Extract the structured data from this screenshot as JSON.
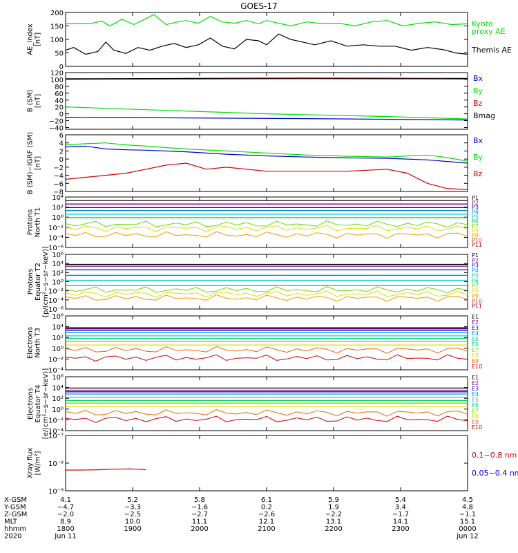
{
  "title": "GOES-17",
  "chart_data": [
    {
      "type": "line",
      "ylabel_lines": [
        "AE_index",
        "[nT]"
      ],
      "ylim": [
        0,
        200
      ],
      "yscale": "linear",
      "ticks": [
        0,
        50,
        100,
        150,
        200
      ],
      "tick_labels": [
        "0",
        "50",
        "100",
        "150",
        "200"
      ],
      "series": [
        {
          "name": "Kyoto proxy AE",
          "label_lines": [
            "Kyoto",
            "proxy AE"
          ],
          "color": "#00dd00",
          "t": [
            0,
            0.06,
            0.09,
            0.11,
            0.14,
            0.17,
            0.19,
            0.22,
            0.25,
            0.28,
            0.3,
            0.33,
            0.36,
            0.39,
            0.42,
            0.45,
            0.48,
            0.5,
            0.53,
            0.56,
            0.6,
            0.64,
            0.68,
            0.72,
            0.76,
            0.8,
            0.84,
            0.88,
            0.92,
            0.96,
            1.0
          ],
          "v": [
            158,
            158,
            168,
            150,
            175,
            155,
            170,
            192,
            155,
            165,
            170,
            160,
            185,
            165,
            160,
            170,
            158,
            170,
            160,
            150,
            165,
            158,
            160,
            150,
            165,
            170,
            150,
            160,
            165,
            155,
            158
          ]
        },
        {
          "name": "Themis AE",
          "label_lines": [
            "Themis AE"
          ],
          "color": "#000000",
          "t": [
            0,
            0.02,
            0.05,
            0.08,
            0.1,
            0.12,
            0.15,
            0.18,
            0.21,
            0.24,
            0.27,
            0.3,
            0.33,
            0.36,
            0.39,
            0.42,
            0.45,
            0.48,
            0.5,
            0.53,
            0.56,
            0.59,
            0.62,
            0.66,
            0.7,
            0.74,
            0.78,
            0.82,
            0.86,
            0.9,
            0.94,
            0.97,
            1.0
          ],
          "v": [
            60,
            70,
            45,
            55,
            90,
            60,
            48,
            70,
            60,
            75,
            85,
            70,
            80,
            105,
            75,
            65,
            100,
            95,
            80,
            120,
            100,
            90,
            80,
            95,
            75,
            80,
            75,
            75,
            60,
            70,
            62,
            50,
            45
          ]
        }
      ]
    },
    {
      "type": "line",
      "ylabel_lines": [
        "B (SM)",
        "[nT]"
      ],
      "ylim": [
        -45,
        120
      ],
      "yscale": "linear",
      "ticks": [
        -40,
        -20,
        0,
        20,
        40,
        60,
        80,
        100,
        120
      ],
      "tick_labels": [
        "−40",
        "−20",
        "0",
        "20",
        "40",
        "60",
        "80",
        "100",
        "120"
      ],
      "series": [
        {
          "name": "Bx",
          "color": "#0000cc",
          "t": [
            0,
            0.3,
            0.6,
            1.0
          ],
          "v": [
            -10,
            -12,
            -14,
            -18
          ]
        },
        {
          "name": "By",
          "color": "#00dd00",
          "t": [
            0,
            0.2,
            0.5,
            0.8,
            1.0
          ],
          "v": [
            20,
            12,
            0,
            -8,
            -15
          ]
        },
        {
          "name": "Bz",
          "color": "#cc0000",
          "t": [
            0,
            0.3,
            0.6,
            1.0
          ],
          "v": [
            100,
            101,
            102,
            101
          ]
        },
        {
          "name": "Bmag",
          "color": "#000000",
          "t": [
            0,
            0.3,
            0.6,
            1.0
          ],
          "v": [
            102,
            103,
            104,
            103
          ]
        }
      ]
    },
    {
      "type": "line",
      "ylabel_lines": [
        "B (SM)−IGRF (SM)",
        "[nT]"
      ],
      "ylim": [
        -8,
        6
      ],
      "yscale": "linear",
      "ticks": [
        -8,
        -6,
        -4,
        -2,
        0,
        2,
        4,
        6
      ],
      "tick_labels": [
        "−8",
        "−6",
        "−4",
        "−2",
        "0",
        "2",
        "4",
        "6"
      ],
      "series": [
        {
          "name": "Bx",
          "color": "#0000cc",
          "t": [
            0,
            0.05,
            0.1,
            0.15,
            0.2,
            0.3,
            0.4,
            0.5,
            0.6,
            0.7,
            0.8,
            0.9,
            1.0
          ],
          "v": [
            3,
            3.2,
            2.5,
            2.3,
            2.2,
            1.8,
            1.2,
            0.8,
            0.5,
            0.3,
            0.2,
            -0.2,
            -1.0
          ]
        },
        {
          "name": "By",
          "color": "#00dd00",
          "t": [
            0,
            0.05,
            0.1,
            0.15,
            0.2,
            0.3,
            0.4,
            0.5,
            0.6,
            0.7,
            0.8,
            0.9,
            0.94,
            1.0
          ],
          "v": [
            3.5,
            3.8,
            4.0,
            3.5,
            3.2,
            2.5,
            2.0,
            1.5,
            1.0,
            0.7,
            0.5,
            1.0,
            0.5,
            -0.5
          ]
        },
        {
          "name": "Bz",
          "color": "#cc0000",
          "t": [
            0,
            0.05,
            0.1,
            0.15,
            0.2,
            0.25,
            0.3,
            0.35,
            0.4,
            0.5,
            0.6,
            0.7,
            0.8,
            0.85,
            0.9,
            0.95,
            1.0
          ],
          "v": [
            -5,
            -4.5,
            -4.0,
            -3.5,
            -2.5,
            -1.5,
            -1.0,
            -2.5,
            -2.0,
            -3.0,
            -3.0,
            -3.0,
            -2.5,
            -3.5,
            -6.0,
            -7.3,
            -7.5
          ]
        }
      ]
    },
    {
      "type": "line",
      "ylabel_lines": [
        "Protons",
        "North T1"
      ],
      "ylim": [
        -6,
        4
      ],
      "yscale": "log",
      "ticks": [
        4,
        2,
        0,
        -2,
        -4,
        -6
      ],
      "tick_labels": [
        "10⁴",
        "10²",
        "10⁰",
        "10⁻²",
        "10⁻⁴",
        "10⁻⁶"
      ],
      "channels": [
        {
          "name": "P1",
          "color": "#000000",
          "level": 3.3
        },
        {
          "name": "P2",
          "color": "#7a0080",
          "level": 2.6
        },
        {
          "name": "P3",
          "color": "#0000cc",
          "level": 1.9
        },
        {
          "name": "P4",
          "color": "#0099dd",
          "level": 1.3
        },
        {
          "name": "P5",
          "color": "#00cccc",
          "level": 0.6
        },
        {
          "name": "P6",
          "color": "#00cc66",
          "level": -0.1
        },
        {
          "name": "P7",
          "color": "#66dd00",
          "level": -1.4
        },
        {
          "name": "P8",
          "color": "#dddd00",
          "level": -2.2
        },
        {
          "name": "P9",
          "color": "#ee9900",
          "level": -3.5
        },
        {
          "name": "P10",
          "color": "#ee3300",
          "level": -9
        },
        {
          "name": "P11",
          "color": "#aa0000",
          "level": -9
        }
      ]
    },
    {
      "type": "line",
      "ylabel_lines": [
        "Protons",
        "Equator T2",
        "[p/(cm²−s−sr−keV)]"
      ],
      "ylim": [
        -6,
        6
      ],
      "yscale": "log",
      "ticks": [
        6,
        4,
        2,
        0,
        -2,
        -4,
        -6
      ],
      "tick_labels": [
        "10⁶",
        "10⁴",
        "10²",
        "10⁰",
        "10⁻²",
        "10⁻⁴",
        "10⁻⁶"
      ],
      "channels": [
        {
          "name": "P1",
          "color": "#000000",
          "level": 3.8
        },
        {
          "name": "P2",
          "color": "#7a0080",
          "level": 3.4
        },
        {
          "name": "P3",
          "color": "#0000cc",
          "level": 2.6
        },
        {
          "name": "P4",
          "color": "#0099dd",
          "level": 1.4
        },
        {
          "name": "P5",
          "color": "#00cccc",
          "level": 0.3
        },
        {
          "name": "P6",
          "color": "#00cc66",
          "level": -0.8
        },
        {
          "name": "P7",
          "color": "#66dd00",
          "level": -1.8
        },
        {
          "name": "P8",
          "color": "#dddd00",
          "level": -2.7
        },
        {
          "name": "P9",
          "color": "#ee9900",
          "level": -3.6
        },
        {
          "name": "P10",
          "color": "#ee3300",
          "level": -9
        },
        {
          "name": "P11",
          "color": "#aa0000",
          "level": -9
        }
      ]
    },
    {
      "type": "line",
      "ylabel_lines": [
        "Electrons",
        "North T3"
      ],
      "ylim": [
        -4,
        6
      ],
      "yscale": "log",
      "ticks": [
        6,
        4,
        2,
        0,
        -2,
        -4
      ],
      "tick_labels": [
        "10⁶",
        "10⁴",
        "10²",
        "10⁰",
        "10⁻²",
        "10⁻⁴"
      ],
      "channels": [
        {
          "name": "E1",
          "color": "#000000",
          "level": 3.8
        },
        {
          "name": "E2",
          "color": "#7a0080",
          "level": 3.6
        },
        {
          "name": "E3",
          "color": "#0000cc",
          "level": 3.3
        },
        {
          "name": "E4",
          "color": "#0099dd",
          "level": 2.9
        },
        {
          "name": "E5",
          "color": "#00cccc",
          "level": 2.3
        },
        {
          "name": "E6",
          "color": "#00cc66",
          "level": 1.8
        },
        {
          "name": "E7",
          "color": "#66dd00",
          "level": 1.2
        },
        {
          "name": "E8",
          "color": "#dddd00",
          "level": 0.6
        },
        {
          "name": "E9",
          "color": "#ee6600",
          "level": -0.3
        },
        {
          "name": "E10",
          "color": "#cc0000",
          "level": -1.8
        }
      ]
    },
    {
      "type": "line",
      "ylabel_lines": [
        "Electrons",
        "Equator T4",
        "[e/(cm²−s−sr−keV)]"
      ],
      "ylim": [
        -4,
        6
      ],
      "yscale": "log",
      "ticks": [
        6,
        4,
        2,
        0,
        -2,
        -4
      ],
      "tick_labels": [
        "10⁶",
        "10⁴",
        "10²",
        "10⁰",
        "10⁻²",
        "10⁻⁴"
      ],
      "channels": [
        {
          "name": "E1",
          "color": "#000000",
          "level": 3.9
        },
        {
          "name": "E2",
          "color": "#7a0080",
          "level": 3.5
        },
        {
          "name": "E3",
          "color": "#0000cc",
          "level": 3.2
        },
        {
          "name": "E4",
          "color": "#0099dd",
          "level": 2.8
        },
        {
          "name": "E5",
          "color": "#00cccc",
          "level": 2.2
        },
        {
          "name": "E6",
          "color": "#00cc66",
          "level": 1.6
        },
        {
          "name": "E7",
          "color": "#66dd00",
          "level": 1.1
        },
        {
          "name": "E8",
          "color": "#dddd00",
          "level": 0.5
        },
        {
          "name": "E9",
          "color": "#ee6600",
          "level": -0.7
        },
        {
          "name": "E10",
          "color": "#cc0000",
          "level": -1.9
        }
      ]
    },
    {
      "type": "line",
      "ylabel_lines": [
        "Xray flux",
        "[W/m²]"
      ],
      "ylim": [
        -9,
        -7
      ],
      "yscale": "log",
      "ticks": [
        -7,
        -8,
        -9
      ],
      "tick_labels": [
        "10⁻⁷",
        "10⁻⁸",
        "10⁻⁹"
      ],
      "series": [
        {
          "name": "0.1−0.8 nm",
          "color": "#dd0000",
          "t": [
            0.0,
            0.04,
            0.08,
            0.12,
            0.16,
            0.18,
            0.2
          ],
          "v": [
            -8.25,
            -8.25,
            -8.24,
            -8.22,
            -8.21,
            -8.22,
            -8.24
          ]
        },
        {
          "name": "0.05−0.4 nm",
          "color": "#0000cc",
          "t": [],
          "v": []
        }
      ]
    }
  ],
  "x_axis": {
    "ticks": [
      0,
      0.1667,
      0.3333,
      0.5,
      0.6667,
      0.8333,
      1.0
    ],
    "rows": [
      {
        "label": "X-GSM",
        "values": [
          "4.1",
          "5.2",
          "5.8",
          "6.1",
          "5.9",
          "5.4",
          "4.5"
        ]
      },
      {
        "label": "Y-GSM",
        "values": [
          "−4.7",
          "−3.3",
          "−1.6",
          "0.2",
          "1.9",
          "3.4",
          "4.8"
        ]
      },
      {
        "label": "Z-GSM",
        "values": [
          "−2.0",
          "−2.5",
          "−2.7",
          "−2.6",
          "−2.2",
          "−1.7",
          "−1.1"
        ]
      },
      {
        "label": "MLT",
        "values": [
          "8.9",
          "10.0",
          "11.1",
          "12.1",
          "13.1",
          "14.1",
          "15.1"
        ]
      },
      {
        "label": "hhmm",
        "values": [
          "1800",
          "1900",
          "2000",
          "2100",
          "2200",
          "2300",
          "0000"
        ]
      },
      {
        "label": "2020",
        "values": [
          "Jun 11",
          "",
          "",
          "",
          "",
          "",
          "Jun 12"
        ]
      }
    ]
  }
}
